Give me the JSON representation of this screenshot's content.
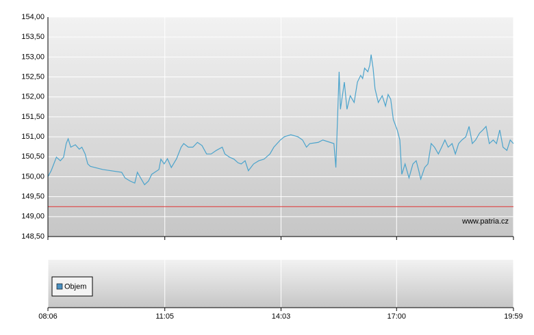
{
  "chart_data": [
    {
      "type": "line",
      "series": [
        {
          "color": "#4aa3cc",
          "x": [
            486,
            491,
            499,
            505,
            510,
            514,
            517,
            521,
            528,
            534,
            538,
            543,
            547,
            551,
            570,
            599,
            604,
            612,
            619,
            623,
            629,
            634,
            640,
            645,
            656,
            659,
            664,
            669,
            675,
            683,
            690,
            694,
            701,
            708,
            715,
            722,
            729,
            736,
            744,
            753,
            757,
            764,
            771,
            777,
            782,
            788,
            793,
            801,
            809,
            817,
            826,
            832,
            842,
            848,
            858,
            869,
            876,
            882,
            887,
            900,
            907,
            924,
            927,
            932,
            934,
            937,
            940,
            944,
            949,
            955,
            960,
            965,
            968,
            971,
            976,
            979,
            981,
            984,
            987,
            992,
            998,
            1003,
            1007,
            1011,
            1015,
            1021,
            1025,
            1028,
            1033,
            1039,
            1045,
            1050,
            1054,
            1057,
            1063,
            1068,
            1073,
            1078,
            1084,
            1089,
            1094,
            1099,
            1105,
            1110,
            1115,
            1120,
            1126,
            1131,
            1136,
            1141,
            1147,
            1152,
            1157,
            1162,
            1168,
            1173,
            1178,
            1183,
            1189,
            1194,
            1199
          ],
          "values": [
            150.0,
            150.15,
            150.49,
            150.4,
            150.49,
            150.83,
            150.95,
            150.74,
            150.8,
            150.69,
            150.74,
            150.57,
            150.32,
            150.26,
            150.18,
            150.11,
            149.97,
            149.89,
            149.84,
            150.11,
            149.94,
            149.8,
            149.89,
            150.06,
            150.18,
            150.44,
            150.32,
            150.45,
            150.23,
            150.45,
            150.74,
            150.83,
            150.74,
            150.74,
            150.86,
            150.78,
            150.57,
            150.57,
            150.66,
            150.74,
            150.57,
            150.49,
            150.44,
            150.35,
            150.32,
            150.4,
            150.15,
            150.32,
            150.4,
            150.44,
            150.57,
            150.74,
            150.92,
            151.0,
            151.05,
            151.0,
            150.92,
            150.74,
            150.83,
            150.86,
            150.92,
            150.83,
            150.23,
            152.63,
            151.69,
            152.03,
            152.37,
            151.69,
            152.03,
            151.86,
            152.37,
            152.54,
            152.46,
            152.72,
            152.63,
            152.8,
            153.06,
            152.72,
            152.2,
            151.86,
            152.03,
            151.77,
            152.06,
            151.94,
            151.43,
            151.17,
            150.92,
            150.06,
            150.32,
            149.97,
            150.32,
            150.4,
            150.15,
            149.94,
            150.23,
            150.32,
            150.83,
            150.74,
            150.57,
            150.74,
            150.92,
            150.74,
            150.83,
            150.57,
            150.83,
            150.92,
            151.0,
            151.26,
            150.83,
            150.92,
            151.09,
            151.17,
            151.26,
            150.83,
            150.92,
            150.83,
            151.17,
            150.74,
            150.66,
            150.92,
            150.83
          ]
        }
      ],
      "xlim": [
        486,
        1199
      ],
      "xticks": [
        {
          "value": 486,
          "label": "08:06"
        },
        {
          "value": 665,
          "label": "11:05"
        },
        {
          "value": 843,
          "label": "14:03"
        },
        {
          "value": 1020,
          "label": "17:00"
        },
        {
          "value": 1199,
          "label": "19:59"
        }
      ],
      "ylim": [
        148.5,
        154
      ],
      "yticks": [
        {
          "value": 148.5,
          "label": "148,50"
        },
        {
          "value": 149,
          "label": "149,00"
        },
        {
          "value": 149.5,
          "label": "149,50"
        },
        {
          "value": 150,
          "label": "150,00"
        },
        {
          "value": 150.5,
          "label": "150,50"
        },
        {
          "value": 151,
          "label": "151,00"
        },
        {
          "value": 151.5,
          "label": "151,50"
        },
        {
          "value": 152,
          "label": "152,00"
        },
        {
          "value": 152.5,
          "label": "152,50"
        },
        {
          "value": 153,
          "label": "153,00"
        },
        {
          "value": 153.5,
          "label": "153,50"
        },
        {
          "value": 154,
          "label": "154,00"
        }
      ],
      "reference_line": {
        "value": 149.25,
        "color": "#e03030"
      },
      "watermark": "www.patria.cz",
      "grid": true
    },
    {
      "type": "bar",
      "series": [
        {
          "name": "Objem",
          "color": "#4a90c0",
          "values": []
        }
      ]
    }
  ]
}
